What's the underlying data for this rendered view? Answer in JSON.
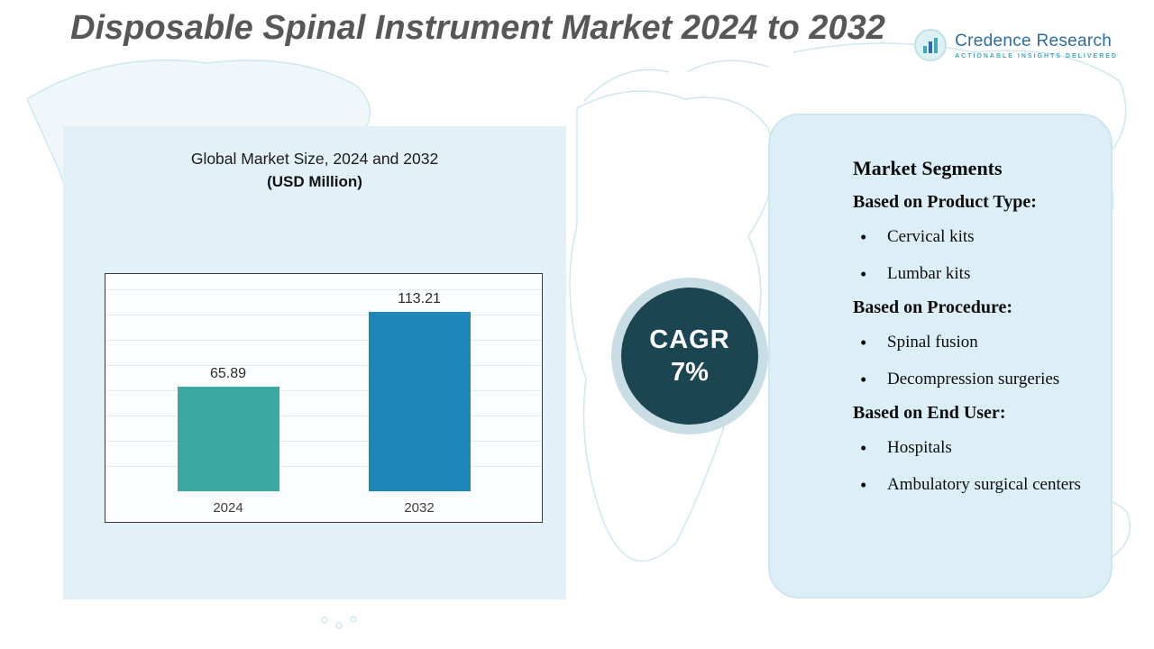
{
  "page": {
    "title": "Disposable Spinal Instrument Market 2024 to 2032"
  },
  "logo": {
    "name": "Credence Research",
    "tagline": "ACTIONABLE INSIGHTS DELIVERED"
  },
  "chart": {
    "title_line1": "Global Market Size, 2024 and 2032",
    "title_line2": "(USD Million)"
  },
  "chart_data": {
    "type": "bar",
    "title": "Global Market Size, 2024 and 2032 (USD Million)",
    "categories": [
      "2024",
      "2032"
    ],
    "values": [
      65.89,
      113.21
    ],
    "xlabel": "",
    "ylabel": "",
    "ylim": [
      0,
      130
    ],
    "grid": true,
    "legend": "none",
    "bar_colors": [
      "#3BA8A2",
      "#1E86B9"
    ]
  },
  "cagr": {
    "label": "CAGR",
    "value": "7%"
  },
  "segments": {
    "heading": "Market Segments",
    "groups": [
      {
        "label": "Based on Product Type:",
        "items": [
          "Cervical kits",
          "Lumbar kits"
        ]
      },
      {
        "label": "Based on Procedure:",
        "items": [
          "Spinal fusion",
          "Decompression surgeries"
        ]
      },
      {
        "label": "Based on End User:",
        "items": [
          "Hospitals",
          "Ambulatory surgical centers"
        ]
      }
    ]
  },
  "colors": {
    "accent_dark_teal": "#1A4551",
    "panel_blue": "#DCEEF6",
    "bar_teal": "#3BA8A2",
    "bar_blue": "#1E86B9",
    "title_gray": "#575757",
    "logo_blue": "#2E6DA4",
    "logo_teal": "#3FA9B8"
  }
}
